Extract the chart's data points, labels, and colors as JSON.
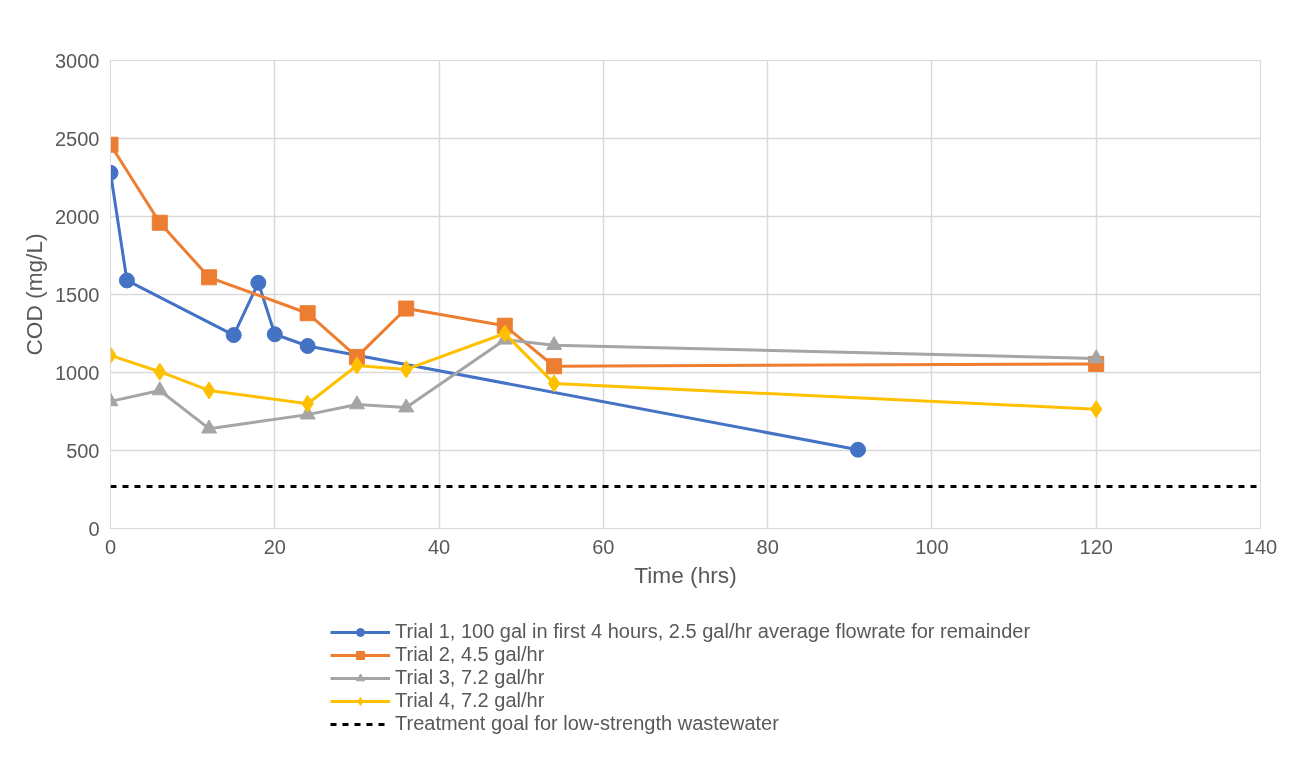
{
  "chart_data": {
    "type": "line",
    "xlabel": "Time (hrs)",
    "ylabel": "COD (mg/L)",
    "xlim": [
      0,
      140
    ],
    "xticks": [
      0,
      20,
      40,
      60,
      80,
      100,
      120,
      140
    ],
    "ylim": [
      0,
      3000
    ],
    "yticks": [
      0,
      500,
      1000,
      1500,
      2000,
      2500,
      3000
    ],
    "grid": true,
    "legend": "bottom",
    "series": [
      {
        "name": "Trial 1, 100 gal in first 4 hours, 2.5 gal/hr average flowrate for remainder",
        "color": "#4472c4",
        "marker": "circle",
        "x": [
          0,
          2,
          15,
          18,
          20,
          24,
          91
        ],
        "values": [
          2280,
          1590,
          1240,
          1575,
          1245,
          1170,
          505
        ]
      },
      {
        "name": "Trial 2, 4.5 gal/hr",
        "color": "#ed7d31",
        "marker": "square",
        "x": [
          0,
          6,
          12,
          24,
          30,
          36,
          48,
          54,
          120
        ],
        "values": [
          2460,
          1960,
          1610,
          1380,
          1100,
          1410,
          1300,
          1040,
          1055
        ]
      },
      {
        "name": "Trial 3, 7.2 gal/hr",
        "color": "#a5a5a5",
        "marker": "triangle",
        "x": [
          0,
          6,
          12,
          24,
          30,
          36,
          48,
          54,
          120
        ],
        "values": [
          815,
          885,
          640,
          730,
          795,
          775,
          1210,
          1175,
          1090
        ]
      },
      {
        "name": "Trial 4, 7.2 gal/hr",
        "color": "#ffc000",
        "marker": "diamond",
        "x": [
          0,
          6,
          12,
          24,
          30,
          36,
          48,
          54,
          120
        ],
        "values": [
          1110,
          1005,
          885,
          800,
          1045,
          1020,
          1250,
          930,
          765
        ]
      }
    ],
    "ref_lines": [
      {
        "axis": "y",
        "value": 270,
        "label": "Treatment goal for low-strength wastewater",
        "color": "#000000",
        "line_style": "dashed"
      }
    ]
  }
}
